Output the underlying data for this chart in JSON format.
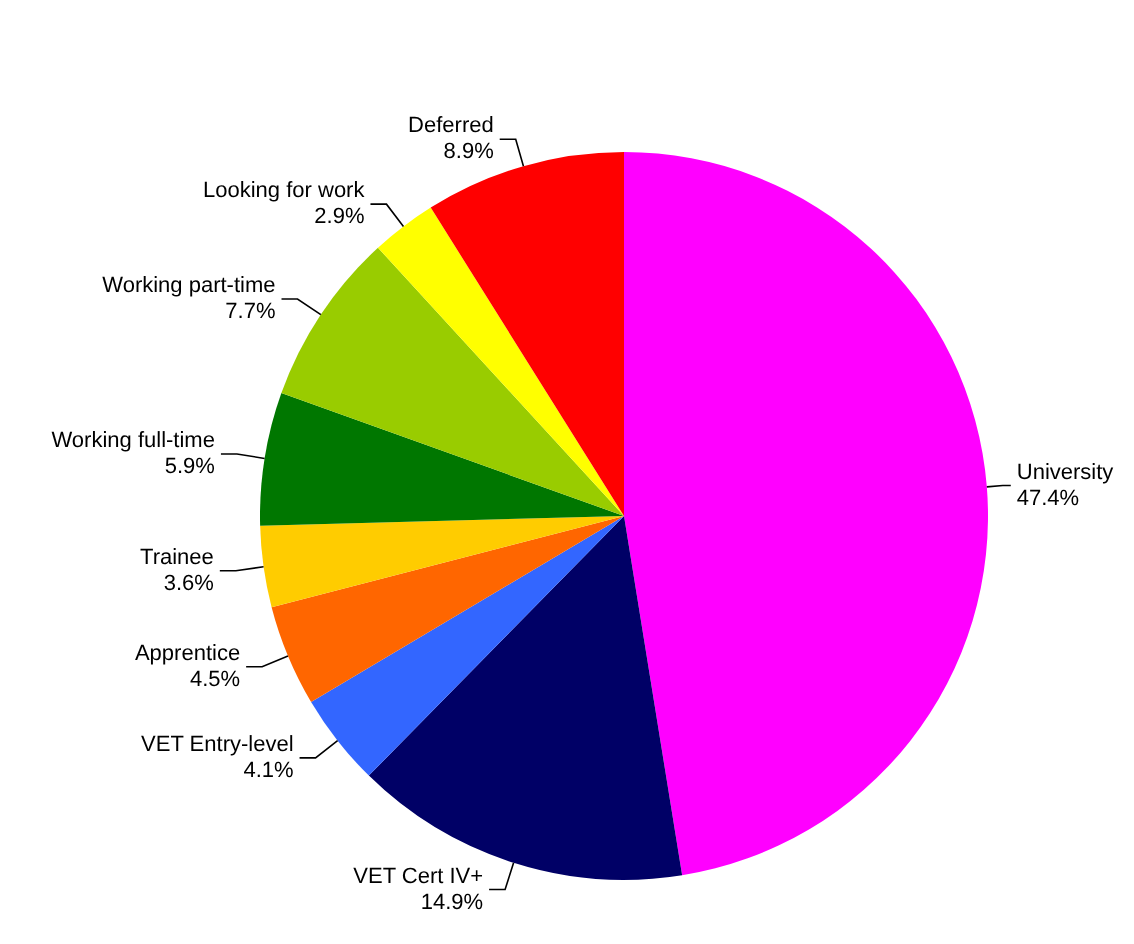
{
  "chart_data": {
    "type": "pie",
    "categories": [
      "University",
      "VET Cert IV+",
      "VET Entry-level",
      "Apprentice",
      "Trainee",
      "Working full-time",
      "Working part-time",
      "Looking for work",
      "Deferred"
    ],
    "values": [
      47.4,
      14.9,
      4.1,
      4.5,
      3.6,
      5.9,
      7.7,
      2.9,
      8.9
    ],
    "value_labels": [
      "47.4%",
      "14.9%",
      "4.1%",
      "4.5%",
      "3.6%",
      "5.9%",
      "7.7%",
      "2.9%",
      "8.9%"
    ],
    "colors": [
      "#ff00ff",
      "#000066",
      "#3366ff",
      "#ff6600",
      "#ffcc00",
      "#007700",
      "#99cc00",
      "#ffff00",
      "#ff0000"
    ],
    "legend": false
  }
}
